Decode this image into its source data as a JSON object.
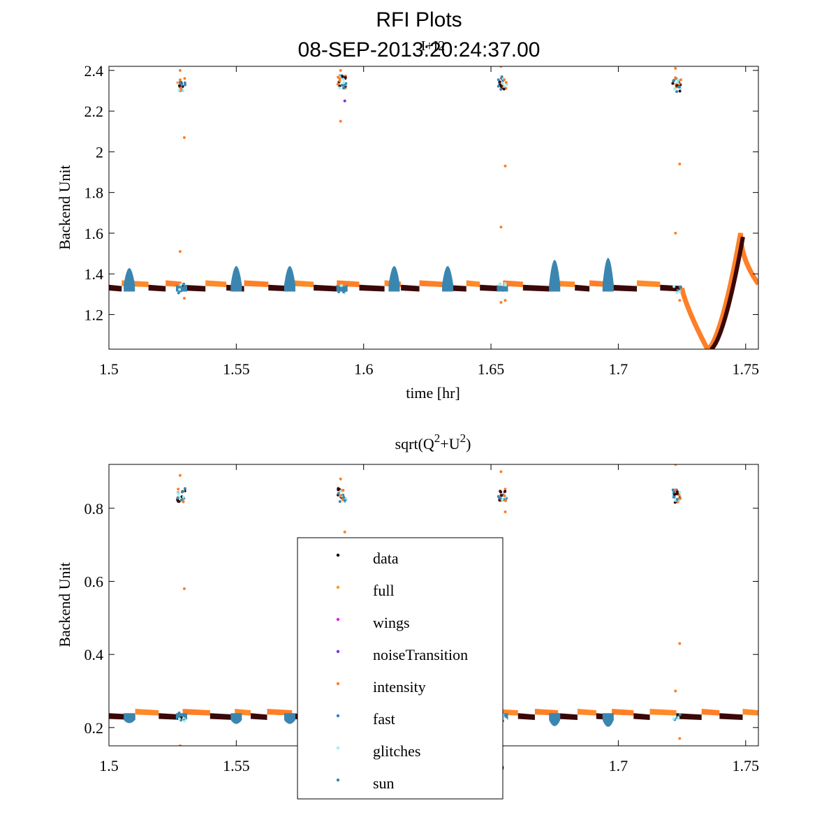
{
  "figure": {
    "title_line1": "RFI Plots",
    "title_line2": "08-SEP-2013:20:24:37.00"
  },
  "chart_data": [
    {
      "type": "scatter",
      "title": "I+I2",
      "xlabel": "time [hr]",
      "ylabel": "Backend Unit",
      "xlim": [
        1.5,
        1.755
      ],
      "ylim": [
        1.03,
        2.42
      ],
      "xticks": [
        "1.5",
        "1.55",
        "1.6",
        "1.65",
        "1.7",
        "1.75"
      ],
      "yticks": [
        "1.2",
        "1.4",
        "1.6",
        "1.8",
        "2",
        "2.2",
        "2.4"
      ],
      "grid": false,
      "baseline": 1.33,
      "spikes": [
        {
          "x": 1.5285,
          "y": 2.33,
          "outliers": [
            2.4,
            2.07,
            1.51,
            1.28
          ]
        },
        {
          "x": 1.5915,
          "y": 2.34,
          "outliers": [
            2.4,
            2.25,
            2.15
          ]
        },
        {
          "x": 1.6545,
          "y": 2.34,
          "outliers": [
            2.42,
            1.93,
            1.63,
            1.27,
            1.26
          ]
        },
        {
          "x": 1.723,
          "y": 2.33,
          "outliers": [
            2.41,
            1.94,
            1.6,
            1.27
          ]
        }
      ],
      "sun_bumps": [
        {
          "x": 1.508,
          "h": 0.09
        },
        {
          "x": 1.5285,
          "h": 0.0
        },
        {
          "x": 1.55,
          "h": 0.1
        },
        {
          "x": 1.571,
          "h": 0.1
        },
        {
          "x": 1.5915,
          "h": 0.0
        },
        {
          "x": 1.612,
          "h": 0.1
        },
        {
          "x": 1.633,
          "h": 0.1
        },
        {
          "x": 1.6545,
          "h": 0.0
        },
        {
          "x": 1.675,
          "h": 0.13
        },
        {
          "x": 1.696,
          "h": 0.14
        }
      ],
      "dip": {
        "start": 1.725,
        "min_x": 1.735,
        "min_y": 1.03,
        "peak_x": 1.748,
        "peak_y": 1.6
      }
    },
    {
      "type": "scatter",
      "title": "sqrt(Q2+U2)",
      "title_parts": {
        "pre": "sqrt(Q",
        "sup1": "2",
        "mid": "+U",
        "sup2": "2",
        "post": ")"
      },
      "xlabel": "",
      "ylabel": "Backend Unit",
      "xlim": [
        1.5,
        1.755
      ],
      "ylim": [
        0.15,
        0.92
      ],
      "xticks": [
        "1.5",
        "1.55",
        "1.6",
        "1.65",
        "1.7",
        "1.75"
      ],
      "yticks": [
        "0.2",
        "0.4",
        "0.6",
        "0.8"
      ],
      "grid": false,
      "baseline": 0.23,
      "spikes": [
        {
          "x": 1.5285,
          "y": 0.835,
          "outliers": [
            0.89,
            0.58,
            0.15
          ]
        },
        {
          "x": 1.5915,
          "y": 0.835,
          "outliers": [
            0.88,
            0.735
          ]
        },
        {
          "x": 1.6545,
          "y": 0.835,
          "outliers": [
            0.9,
            0.79
          ]
        },
        {
          "x": 1.723,
          "y": 0.835,
          "outliers": [
            0.92,
            0.43,
            0.3,
            0.17
          ]
        }
      ],
      "legend_position": "center",
      "legend": [
        {
          "label": "data",
          "color": "#000000"
        },
        {
          "label": "full",
          "color": "#e6a020"
        },
        {
          "label": "wings",
          "color": "#e020e0"
        },
        {
          "label": "noiseTransition",
          "color": "#8030e0"
        },
        {
          "label": "intensity",
          "color": "#ff7f27"
        },
        {
          "label": "fast",
          "color": "#2b7fe0"
        },
        {
          "label": "glitches",
          "color": "#a0f0f0"
        },
        {
          "label": "sun",
          "color": "#3a86b0"
        }
      ]
    }
  ],
  "colors": {
    "data": "#3a0808",
    "full": "#ff8a2a",
    "intensity": "#ff7f27",
    "sun": "#3a86b0",
    "glitches": "#a0f0f0",
    "fast": "#2b7fe0",
    "wings": "#e020e0",
    "noiseTransition": "#8030e0"
  }
}
